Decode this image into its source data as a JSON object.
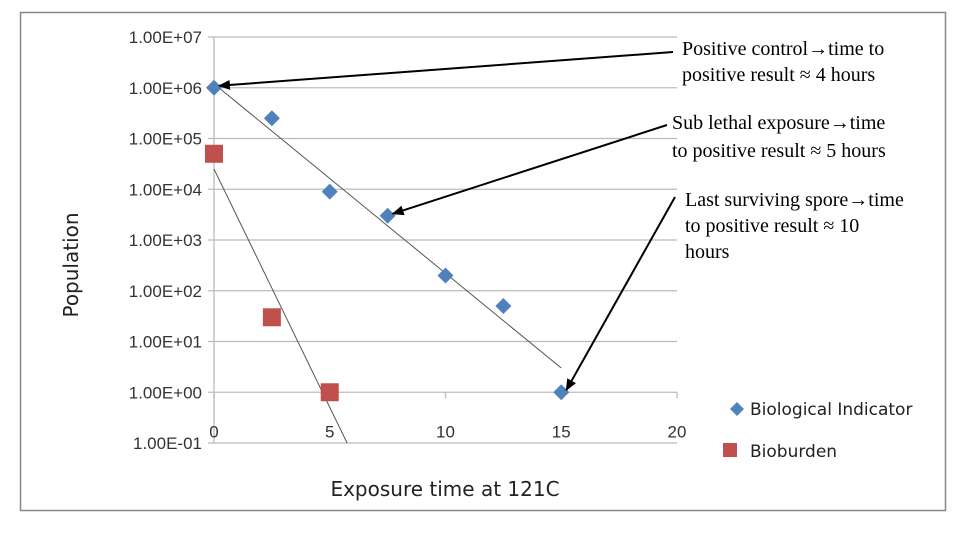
{
  "chart_data": {
    "type": "scatter",
    "title": "",
    "xlabel": "Exposure time at 121C",
    "ylabel": "Population",
    "xlim": [
      0,
      20
    ],
    "ylim": [
      0.1,
      10000000
    ],
    "y_scale": "log",
    "x_ticks": [
      "0",
      "5",
      "10",
      "15",
      "20"
    ],
    "y_ticks": [
      "1.00E+07",
      "1.00E+06",
      "1.00E+05",
      "1.00E+04",
      "1.00E+03",
      "1.00E+02",
      "1.00E+01",
      "1.00E+00",
      "1.00E-01"
    ],
    "grid": "horizontal",
    "legend_placement": "right",
    "series": [
      {
        "name": "Biological Indicator",
        "marker": "diamond",
        "color": "#4f81bd",
        "x": [
          0,
          2.5,
          5,
          7.5,
          10,
          12.5,
          15
        ],
        "y": [
          1000000,
          250000,
          9000,
          3000,
          200,
          50,
          1
        ],
        "trendline": {
          "x": [
            0,
            15
          ],
          "y": [
            1200000,
            3
          ]
        }
      },
      {
        "name": "Bioburden",
        "marker": "square",
        "color": "#c0504d",
        "x": [
          0,
          2.5,
          5
        ],
        "y": [
          50000,
          30,
          1
        ],
        "trendline": {
          "x": [
            0,
            5.75
          ],
          "y": [
            25000,
            0.1
          ]
        }
      }
    ],
    "annotations": [
      {
        "lines": [
          "Positive control→time to",
          "positive result ≈ 4 hours"
        ],
        "points_to": {
          "x": 0,
          "y": 1000000
        }
      },
      {
        "lines": [
          "Sub lethal exposure→time",
          "to positive result ≈ 5 hours"
        ],
        "points_to": {
          "x": 7.5,
          "y": 3000
        }
      },
      {
        "lines": [
          "Last surviving spore→time",
          "to positive result ≈ 10",
          "hours"
        ],
        "points_to": {
          "x": 15,
          "y": 1
        }
      }
    ]
  }
}
